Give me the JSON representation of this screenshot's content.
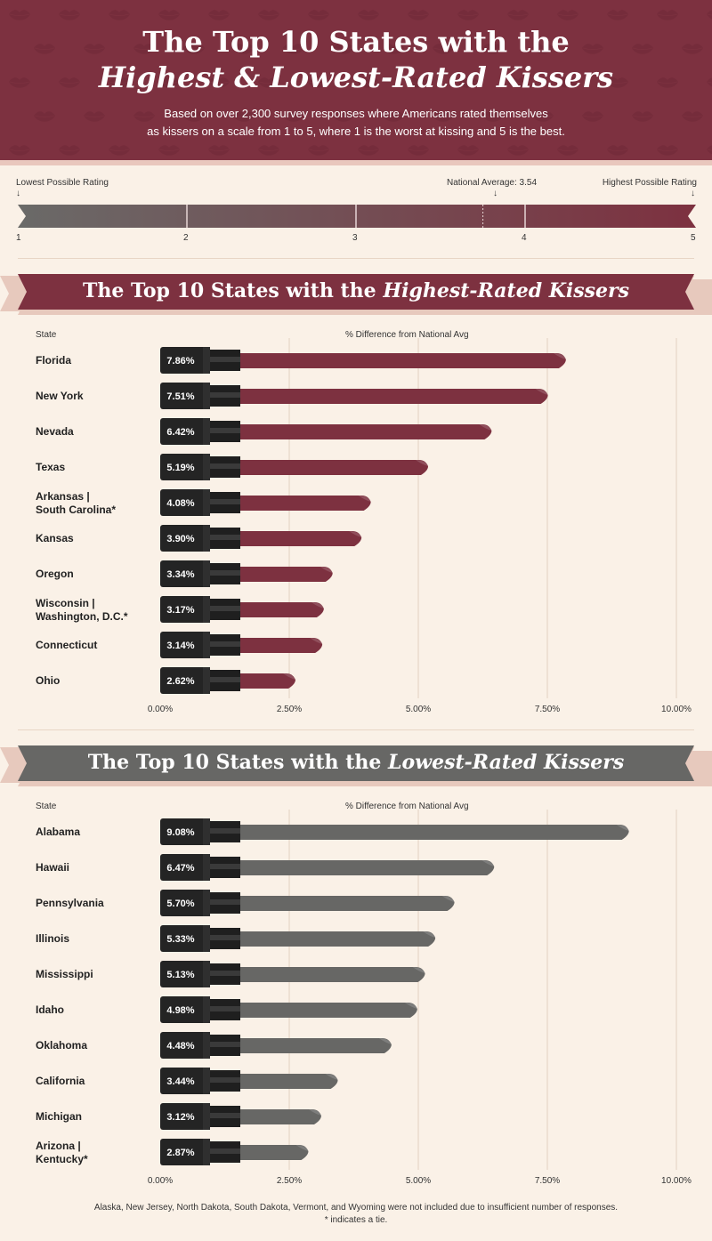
{
  "header": {
    "title_line1": "The Top 10 States with the",
    "title_line2": "Highest & Lowest-Rated Kissers",
    "subtitle_line1": "Based on over 2,300 survey responses where Americans rated themselves",
    "subtitle_line2": "as kissers on a scale from 1 to 5, where 1 is the worst at kissing and 5 is the best.",
    "pattern_icon": "lips-icon"
  },
  "scale": {
    "lowest_label": "Lowest Possible Rating",
    "highest_label": "Highest Possible Rating",
    "national_label": "National Average: 3.54",
    "national_value": 3.54,
    "ticks": [
      "1",
      "2",
      "3",
      "4",
      "5"
    ],
    "gradient_start": "#6a6a68",
    "gradient_end": "#7d3140"
  },
  "colors": {
    "highest": "#7d3140",
    "lowest": "#676765",
    "lipstick_case": "#242424",
    "background": "#faf1e7"
  },
  "highest": {
    "banner_prefix": "The Top 10 States with the ",
    "banner_italic": "Highest-Rated Kissers",
    "state_header": "State",
    "value_header": "% Difference from National Avg"
  },
  "lowest": {
    "banner_prefix": "The Top 10 States with the ",
    "banner_italic": "Lowest-Rated Kissers",
    "state_header": "State",
    "value_header": "% Difference from National Avg"
  },
  "chart_data": [
    {
      "type": "bar",
      "title": "The Top 10 States with the Highest-Rated Kissers",
      "xlabel": "% Difference from National Avg",
      "ylabel": "State",
      "xlim": [
        0,
        10
      ],
      "x_ticks": [
        "0.00%",
        "2.50%",
        "5.00%",
        "7.50%",
        "10.00%"
      ],
      "categories": [
        [
          "Florida"
        ],
        [
          "New York"
        ],
        [
          "Nevada"
        ],
        [
          "Texas"
        ],
        [
          "Arkansas |",
          "South Carolina*"
        ],
        [
          "Kansas"
        ],
        [
          "Oregon"
        ],
        [
          "Wisconsin |",
          "Washington, D.C.*"
        ],
        [
          "Connecticut"
        ],
        [
          "Ohio"
        ]
      ],
      "values": [
        7.86,
        7.51,
        6.42,
        5.19,
        4.08,
        3.9,
        3.34,
        3.17,
        3.14,
        2.62
      ],
      "value_labels": [
        "7.86%",
        "7.51%",
        "6.42%",
        "5.19%",
        "4.08%",
        "3.90%",
        "3.34%",
        "3.17%",
        "3.14%",
        "2.62%"
      ],
      "grid": true
    },
    {
      "type": "bar",
      "title": "The Top 10 States with the Lowest-Rated Kissers",
      "xlabel": "% Difference from National Avg",
      "ylabel": "State",
      "xlim": [
        0,
        10
      ],
      "x_ticks": [
        "0.00%",
        "2.50%",
        "5.00%",
        "7.50%",
        "10.00%"
      ],
      "categories": [
        [
          "Alabama"
        ],
        [
          "Hawaii"
        ],
        [
          "Pennsylvania"
        ],
        [
          "Illinois"
        ],
        [
          "Mississippi"
        ],
        [
          "Idaho"
        ],
        [
          "Oklahoma"
        ],
        [
          "California"
        ],
        [
          "Michigan"
        ],
        [
          "Arizona |",
          "Kentucky*"
        ]
      ],
      "values": [
        9.08,
        6.47,
        5.7,
        5.33,
        5.13,
        4.98,
        4.48,
        3.44,
        3.12,
        2.87
      ],
      "value_labels": [
        "9.08%",
        "6.47%",
        "5.70%",
        "5.33%",
        "5.13%",
        "4.98%",
        "4.48%",
        "3.44%",
        "3.12%",
        "2.87%"
      ],
      "grid": true
    }
  ],
  "footnote": {
    "line1": "Alaska, New Jersey, North Dakota, South Dakota, Vermont, and Wyoming were not included due to insufficient number of responses.",
    "line2": "* indicates a tie."
  }
}
